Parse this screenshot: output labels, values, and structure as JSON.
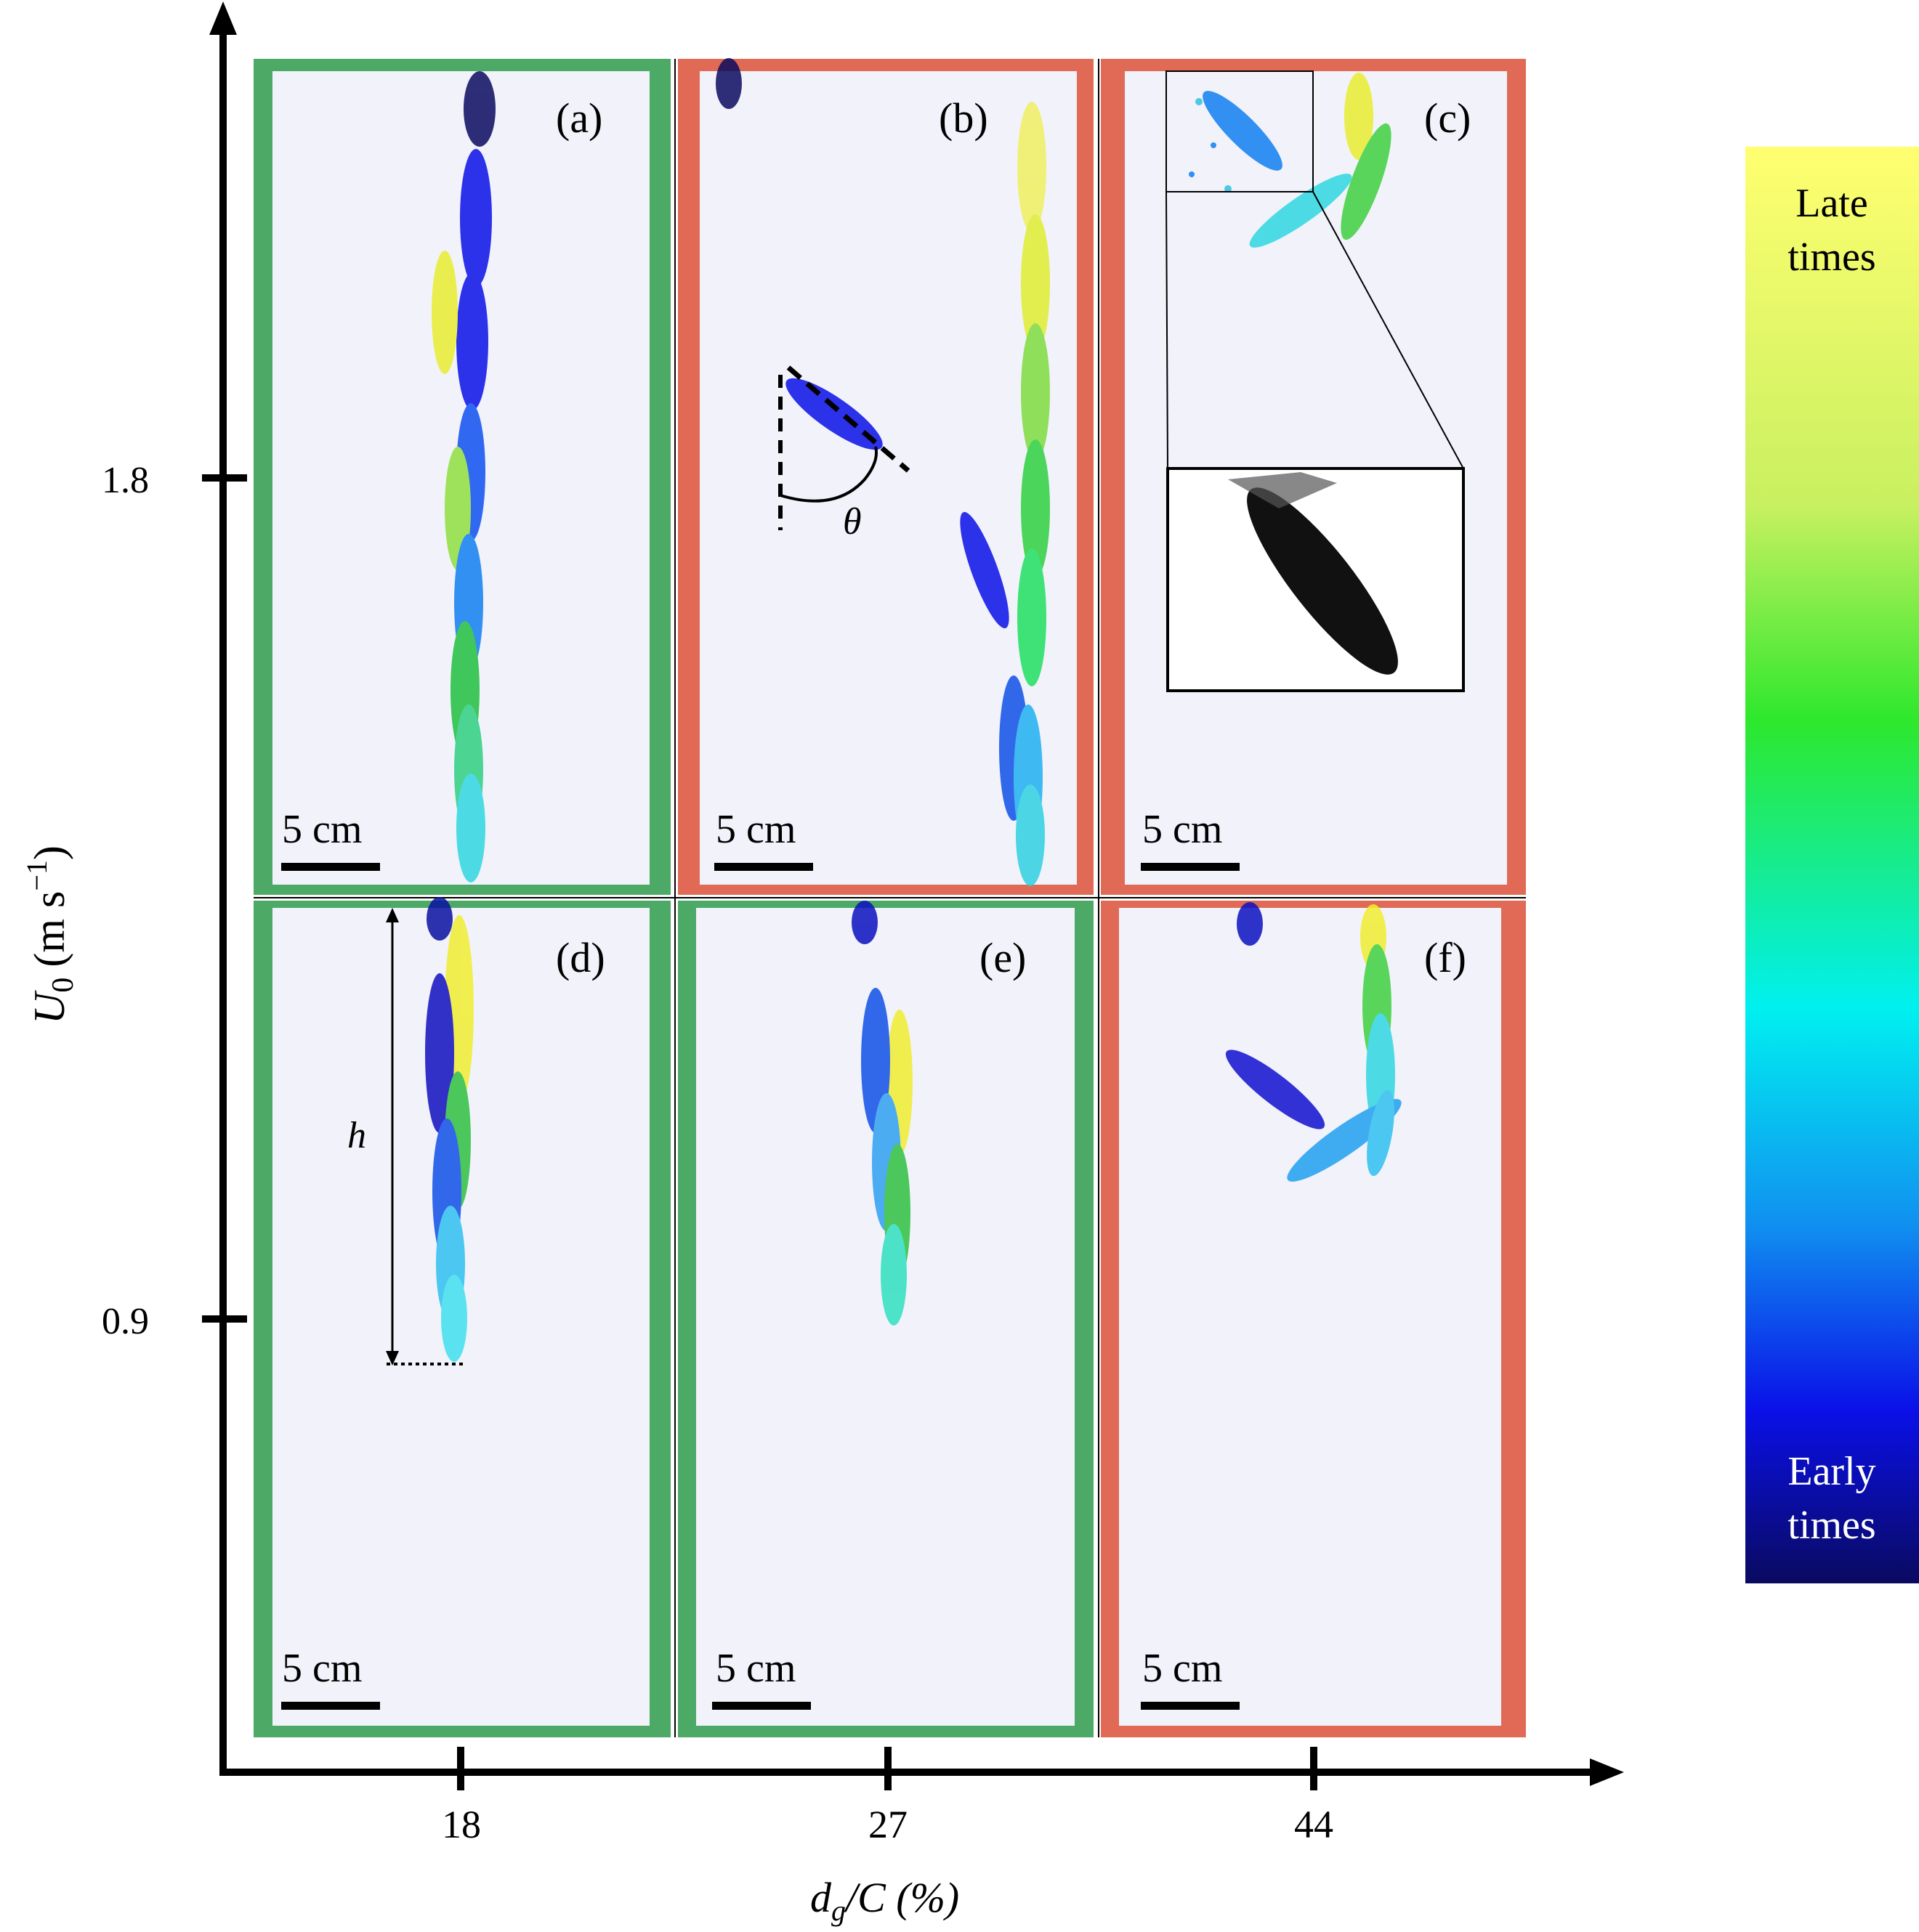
{
  "figure": {
    "y_axis": {
      "label_main": "U",
      "label_sub": "0",
      "label_unit": "(m s",
      "label_sup": "−1",
      "label_close": ")",
      "ticks": [
        "1.8",
        "0.9"
      ]
    },
    "x_axis": {
      "label_d": "d",
      "label_g": "g",
      "label_rest": "/C (%)",
      "ticks": [
        "18",
        "27",
        "44"
      ]
    },
    "panels": [
      {
        "id": "a",
        "label": "(a)",
        "frame": "#4caa66",
        "scale": "5 cm"
      },
      {
        "id": "b",
        "label": "(b)",
        "frame": "#e06a55",
        "scale": "5 cm"
      },
      {
        "id": "c",
        "label": "(c)",
        "frame": "#e06a55",
        "scale": "5 cm"
      },
      {
        "id": "d",
        "label": "(d)",
        "frame": "#4caa66",
        "scale": "5 cm"
      },
      {
        "id": "e",
        "label": "(e)",
        "frame": "#4caa66",
        "scale": "5 cm"
      },
      {
        "id": "f",
        "label": "(f)",
        "frame": "#e06a55",
        "scale": "5 cm"
      }
    ],
    "annotations": {
      "theta": "θ",
      "h": "h"
    },
    "colorbar": {
      "top_line1": "Late",
      "top_line2": "times",
      "bottom_line1": "Early",
      "bottom_line2": "times",
      "colors": [
        "#ffff70",
        "#c8f060",
        "#2de82d",
        "#00f0f0",
        "#1090f0",
        "#0a10e8",
        "#0a0a60"
      ]
    },
    "colors": {
      "background": "#f2f2fb",
      "green_frame": "#4caa66",
      "red_frame": "#e06a55"
    }
  }
}
